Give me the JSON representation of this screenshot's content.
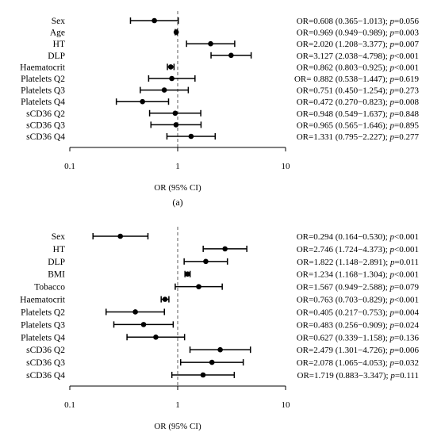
{
  "chart_data": [
    {
      "type": "forest",
      "panel_label": "(a)",
      "xlabel": "OR (95% CI)",
      "x_scale": "log",
      "xlim": [
        0.1,
        10
      ],
      "x_ticks": [
        "0.1",
        "1",
        "10"
      ],
      "reference_line": 1,
      "rows": [
        {
          "label": "Sex",
          "or": 0.608,
          "lo": 0.365,
          "hi": 1.013,
          "text_main": "OR=0.608 (0.365−1.013); ",
          "p_prefix": "p",
          "p_text": "=0.056"
        },
        {
          "label": "Age",
          "or": 0.969,
          "lo": 0.949,
          "hi": 0.989,
          "text_main": "OR=0.969 (0.949−0.989); ",
          "p_prefix": "p",
          "p_text": "=0.003"
        },
        {
          "label": "HT",
          "or": 2.02,
          "lo": 1.208,
          "hi": 3.377,
          "text_main": "OR=2.020 (1.208−3.377); ",
          "p_prefix": "p",
          "p_text": "=0.007"
        },
        {
          "label": "DLP",
          "or": 3.127,
          "lo": 2.038,
          "hi": 4.798,
          "text_main": "OR=3.127 (2.038−4.798); ",
          "p_prefix": "p",
          "p_text": "<0.001"
        },
        {
          "label": "Haematocrit",
          "or": 0.862,
          "lo": 0.803,
          "hi": 0.925,
          "text_main": "OR=0.862 (0.803−0.925); ",
          "p_prefix": "p",
          "p_text": "<0.001"
        },
        {
          "label": "Platelets Q2",
          "or": 0.882,
          "lo": 0.538,
          "hi": 1.447,
          "text_main": "OR= 0.882 (0.538−1.447); ",
          "p_prefix": "p",
          "p_text": "=0.619"
        },
        {
          "label": "Platelets Q3",
          "or": 0.751,
          "lo": 0.45,
          "hi": 1.254,
          "text_main": "OR=0.751 (0.450−1.254); ",
          "p_prefix": "p",
          "p_text": "=0.273"
        },
        {
          "label": "Platelets Q4",
          "or": 0.472,
          "lo": 0.27,
          "hi": 0.823,
          "text_main": "OR=0.472 (0.270−0.823); ",
          "p_prefix": "p",
          "p_text": "=0.008"
        },
        {
          "label": "sCD36 Q2",
          "or": 0.948,
          "lo": 0.549,
          "hi": 1.637,
          "text_main": "OR=0.948 (0.549−1.637); ",
          "p_prefix": "p",
          "p_text": "=0.848"
        },
        {
          "label": "sCD36 Q3",
          "or": 0.965,
          "lo": 0.565,
          "hi": 1.646,
          "text_main": "OR=0.965 (0.565−1.646); ",
          "p_prefix": "p",
          "p_text": "=0.895"
        },
        {
          "label": "sCD36 Q4",
          "or": 1.331,
          "lo": 0.795,
          "hi": 2.227,
          "text_main": "OR=1.331 (0.795−2.227); ",
          "p_prefix": "p",
          "p_text": "=0.277"
        }
      ]
    },
    {
      "type": "forest",
      "panel_label": "(b)",
      "xlabel": "OR (95% CI)",
      "x_scale": "log",
      "xlim": [
        0.1,
        10
      ],
      "x_ticks": [
        "0.1",
        "1",
        "10"
      ],
      "reference_line": 1,
      "rows": [
        {
          "label": "Sex",
          "or": 0.294,
          "lo": 0.164,
          "hi": 0.53,
          "text_main": "OR=0.294 (0.164−0.530); ",
          "p_prefix": "p",
          "p_text": "<0.001"
        },
        {
          "label": "HT",
          "or": 2.746,
          "lo": 1.724,
          "hi": 4.373,
          "text_main": "OR=2.746 (1.724−4.373); ",
          "p_prefix": "p",
          "p_text": "<0.001"
        },
        {
          "label": "DLP",
          "or": 1.822,
          "lo": 1.148,
          "hi": 2.891,
          "text_main": "OR=1.822 (1.148−2.891); ",
          "p_prefix": "p",
          "p_text": "=0.011"
        },
        {
          "label": "BMI",
          "or": 1.234,
          "lo": 1.168,
          "hi": 1.304,
          "text_main": "OR=1.234 (1.168−1.304); ",
          "p_prefix": "p",
          "p_text": "<0.001"
        },
        {
          "label": "Tobacco",
          "or": 1.567,
          "lo": 0.949,
          "hi": 2.588,
          "text_main": "OR=1.567 (0.949−2.588); ",
          "p_prefix": "p",
          "p_text": "=0.079"
        },
        {
          "label": "Haematocrit",
          "or": 0.763,
          "lo": 0.703,
          "hi": 0.829,
          "text_main": "OR=0.763 (0.703−0.829); ",
          "p_prefix": "p",
          "p_text": "<0.001"
        },
        {
          "label": "Platelets Q2",
          "or": 0.405,
          "lo": 0.217,
          "hi": 0.753,
          "text_main": "OR=0.405 (0.217−0.753); ",
          "p_prefix": "p",
          "p_text": "=0.004"
        },
        {
          "label": "Platelets Q3",
          "or": 0.483,
          "lo": 0.256,
          "hi": 0.909,
          "text_main": "OR=0.483 (0.256−0.909); ",
          "p_prefix": "p",
          "p_text": "=0.024"
        },
        {
          "label": "Platelets Q4",
          "or": 0.627,
          "lo": 0.339,
          "hi": 1.158,
          "text_main": "OR=0.627 (0.339−1.158); ",
          "p_prefix": "p",
          "p_text": "=0.136"
        },
        {
          "label": "sCD36 Q2",
          "or": 2.479,
          "lo": 1.301,
          "hi": 4.726,
          "text_main": "OR=2.479 (1.301−4.726); ",
          "p_prefix": "p",
          "p_text": "=0.006"
        },
        {
          "label": "sCD36 Q3",
          "or": 2.078,
          "lo": 1.065,
          "hi": 4.053,
          "text_main": "OR=2.078 (1.065−4.053); ",
          "p_prefix": "p",
          "p_text": "=0.032"
        },
        {
          "label": "sCD36 Q4",
          "or": 1.719,
          "lo": 0.883,
          "hi": 3.347,
          "text_main": "OR=1.719 (0.883−3.347); ",
          "p_prefix": "p",
          "p_text": "=0.111"
        }
      ]
    }
  ]
}
